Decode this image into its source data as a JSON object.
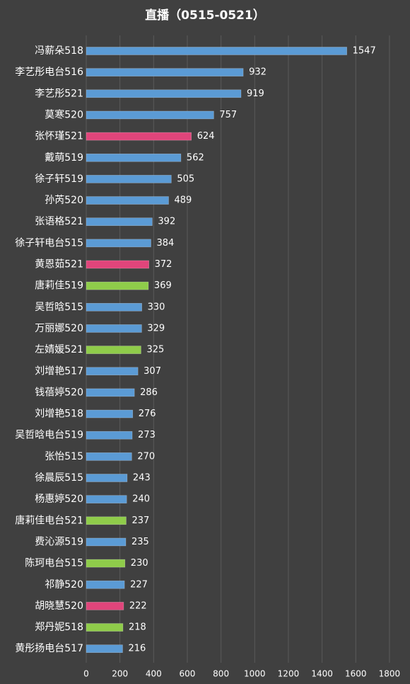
{
  "chart_data": {
    "type": "bar",
    "orientation": "horizontal",
    "title": "直播（0515-0521）",
    "xlabel": "",
    "ylabel": "",
    "xlim": [
      0,
      1800
    ],
    "x_ticks": [
      "0",
      "200",
      "400",
      "600",
      "800",
      "1000",
      "1200",
      "1400",
      "1600",
      "1800"
    ],
    "grid": true,
    "legend": "none",
    "colors": {
      "blue": "#5b9bd5",
      "pink": "#e0457b",
      "green": "#8fcc4a",
      "background": "#404040"
    },
    "bars": [
      {
        "label": "冯薪朵518",
        "value": 1547,
        "color": "blue"
      },
      {
        "label": "李艺彤电台516",
        "value": 932,
        "color": "blue"
      },
      {
        "label": "李艺彤521",
        "value": 919,
        "color": "blue"
      },
      {
        "label": "莫寒520",
        "value": 757,
        "color": "blue"
      },
      {
        "label": "张怀瑾521",
        "value": 624,
        "color": "pink"
      },
      {
        "label": "戴萌519",
        "value": 562,
        "color": "blue"
      },
      {
        "label": "徐子轩519",
        "value": 505,
        "color": "blue"
      },
      {
        "label": "孙芮520",
        "value": 489,
        "color": "blue"
      },
      {
        "label": "张语格521",
        "value": 392,
        "color": "blue"
      },
      {
        "label": "徐子轩电台515",
        "value": 384,
        "color": "blue"
      },
      {
        "label": "黄恩茹521",
        "value": 372,
        "color": "pink"
      },
      {
        "label": "唐莉佳519",
        "value": 369,
        "color": "green"
      },
      {
        "label": "吴哲晗515",
        "value": 330,
        "color": "blue"
      },
      {
        "label": "万丽娜520",
        "value": 329,
        "color": "blue"
      },
      {
        "label": "左婧媛521",
        "value": 325,
        "color": "green"
      },
      {
        "label": "刘增艳517",
        "value": 307,
        "color": "blue"
      },
      {
        "label": "钱蓓婷520",
        "value": 286,
        "color": "blue"
      },
      {
        "label": "刘增艳518",
        "value": 276,
        "color": "blue"
      },
      {
        "label": "吴哲晗电台519",
        "value": 273,
        "color": "blue"
      },
      {
        "label": "张怡515",
        "value": 270,
        "color": "blue"
      },
      {
        "label": "徐晨辰515",
        "value": 243,
        "color": "blue"
      },
      {
        "label": "杨惠婷520",
        "value": 240,
        "color": "blue"
      },
      {
        "label": "唐莉佳电台521",
        "value": 237,
        "color": "green"
      },
      {
        "label": "费沁源519",
        "value": 235,
        "color": "blue"
      },
      {
        "label": "陈珂电台515",
        "value": 230,
        "color": "green"
      },
      {
        "label": "祁静520",
        "value": 227,
        "color": "blue"
      },
      {
        "label": "胡晓慧520",
        "value": 222,
        "color": "pink"
      },
      {
        "label": "郑丹妮518",
        "value": 218,
        "color": "green"
      },
      {
        "label": "黄彤扬电台517",
        "value": 216,
        "color": "blue"
      }
    ]
  }
}
